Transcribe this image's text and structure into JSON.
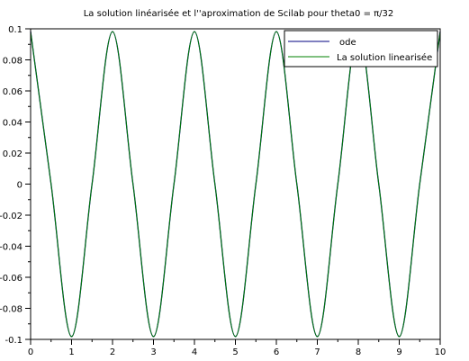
{
  "chart_data": {
    "type": "line",
    "title": "La solution linéarisée et l''aproximation de Scilab pour theta0 = π/32",
    "xlabel": "",
    "ylabel": "",
    "xlim": [
      0,
      10
    ],
    "ylim": [
      -0.1,
      0.1
    ],
    "x_ticks": [
      0,
      1,
      2,
      3,
      4,
      5,
      6,
      7,
      8,
      9,
      10
    ],
    "x_tick_labels": [
      "0",
      "1",
      "2",
      "3",
      "4",
      "5",
      "6",
      "7",
      "8",
      "9",
      "10"
    ],
    "y_ticks": [
      0.1,
      0.08,
      0.06,
      0.04,
      0.02,
      0,
      -0.02,
      -0.04,
      -0.06,
      -0.08,
      -0.1
    ],
    "y_tick_labels": [
      "0.1",
      "0.08",
      "0.06",
      "0.04",
      "0.02",
      "0",
      "-0.02",
      "-0.04",
      "-0.06",
      "-0.08",
      "-0.1"
    ],
    "grid": false,
    "legend_position": "top-right",
    "series": [
      {
        "name": "ode",
        "color": "#000080",
        "x": [
          0,
          0.5,
          1,
          1.5,
          2,
          2.5,
          3,
          3.5,
          4,
          4.5,
          5,
          5.5,
          6,
          6.5,
          7,
          7.5,
          8,
          8.5,
          9,
          9.5,
          10
        ],
        "y": [
          0.0982,
          0,
          -0.0982,
          0,
          0.0982,
          0,
          -0.0982,
          0,
          0.0982,
          0,
          -0.0982,
          0,
          0.0982,
          0,
          -0.0982,
          0,
          0.0982,
          0,
          -0.0982,
          0,
          0.0982
        ]
      },
      {
        "name": "La solution linearisée",
        "color": "#008000",
        "x": [
          0,
          0.5,
          1,
          1.5,
          2,
          2.5,
          3,
          3.5,
          4,
          4.5,
          5,
          5.5,
          6,
          6.5,
          7,
          7.5,
          8,
          8.5,
          9,
          9.5,
          10
        ],
        "y": [
          0.0982,
          0,
          -0.0982,
          0,
          0.0982,
          0,
          -0.0982,
          0,
          0.0982,
          0,
          -0.0982,
          0,
          0.0982,
          0,
          -0.0982,
          0,
          0.0982,
          0,
          -0.0982,
          0,
          0.0982
        ]
      }
    ]
  }
}
